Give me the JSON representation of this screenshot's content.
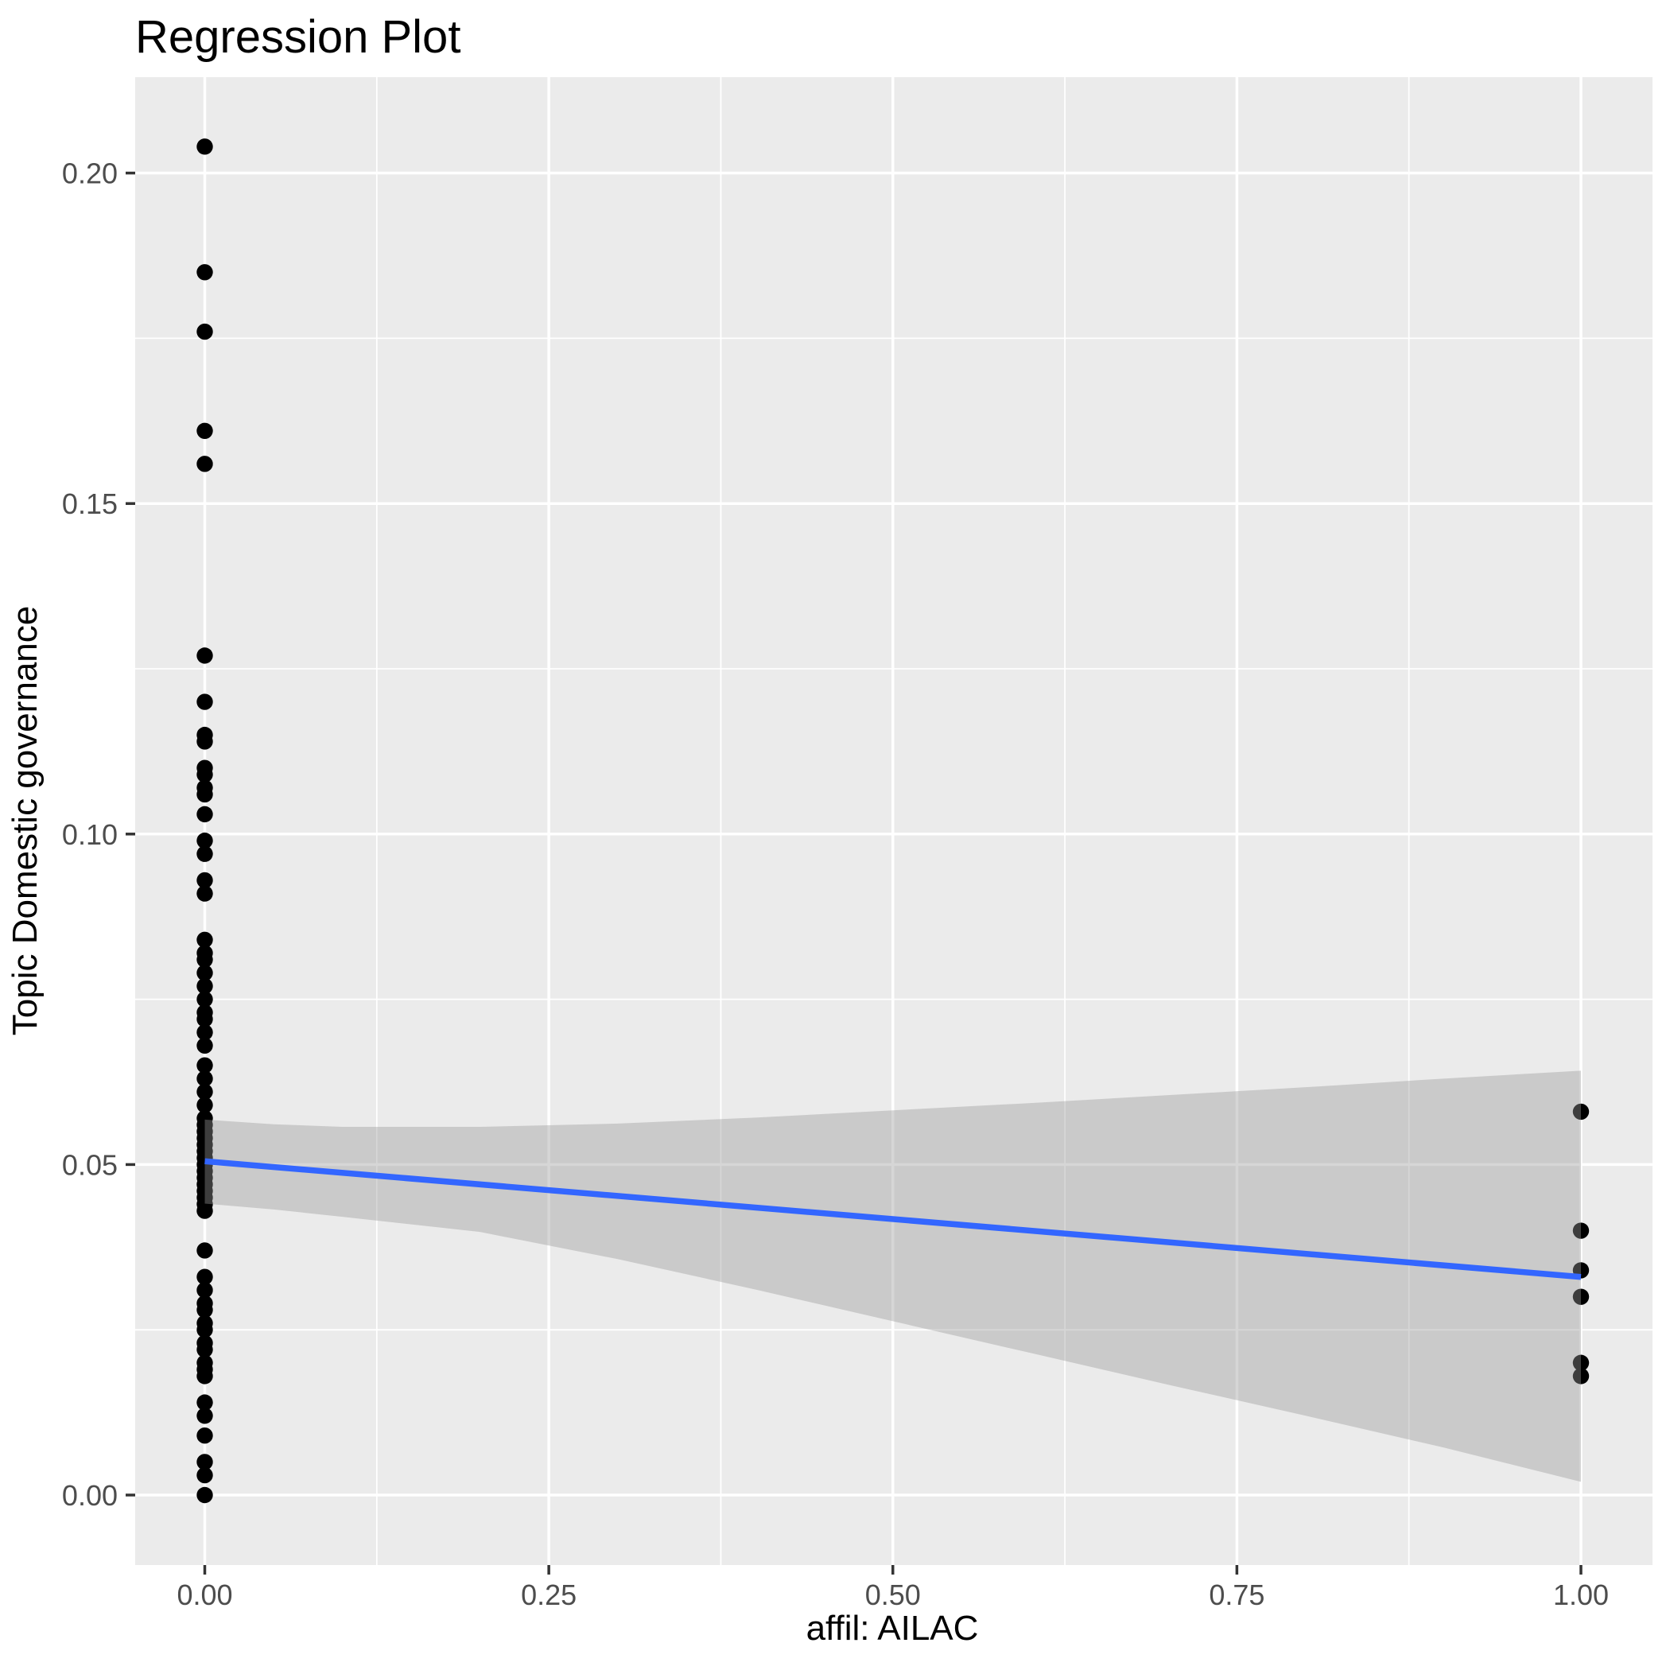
{
  "figure": {
    "title": "Regression Plot"
  },
  "chart_data": {
    "type": "scatter",
    "title": "Regression Plot",
    "xlabel": "affil: AILAC",
    "ylabel": "Topic Domestic governance",
    "legend": "none",
    "grid": true,
    "xlim": [
      -0.0505,
      1.0505
    ],
    "ylim": [
      -0.0106,
      0.2145
    ],
    "x_ticks": {
      "values": [
        0.0,
        0.25,
        0.5,
        0.75,
        1.0
      ],
      "labels": [
        "0.00",
        "0.25",
        "0.50",
        "0.75",
        "1.00"
      ]
    },
    "y_ticks": {
      "values": [
        0.0,
        0.05,
        0.1,
        0.15,
        0.2
      ],
      "labels": [
        "0.00",
        "0.05",
        "0.10",
        "0.15",
        "0.20"
      ]
    },
    "x_minor_ticks": [
      0.125,
      0.375,
      0.625,
      0.875
    ],
    "y_minor_ticks": [
      0.025,
      0.075,
      0.125,
      0.175
    ],
    "points": [
      [
        0,
        0.204
      ],
      [
        0,
        0.185
      ],
      [
        0,
        0.176
      ],
      [
        0,
        0.161
      ],
      [
        0,
        0.156
      ],
      [
        0,
        0.127
      ],
      [
        0,
        0.12
      ],
      [
        0,
        0.115
      ],
      [
        0,
        0.114
      ],
      [
        0,
        0.11
      ],
      [
        0,
        0.109
      ],
      [
        0,
        0.107
      ],
      [
        0,
        0.106
      ],
      [
        0,
        0.103
      ],
      [
        0,
        0.099
      ],
      [
        0,
        0.097
      ],
      [
        0,
        0.093
      ],
      [
        0,
        0.091
      ],
      [
        0,
        0.084
      ],
      [
        0,
        0.082
      ],
      [
        0,
        0.081
      ],
      [
        0,
        0.079
      ],
      [
        0,
        0.077
      ],
      [
        0,
        0.075
      ],
      [
        0,
        0.073
      ],
      [
        0,
        0.072
      ],
      [
        0,
        0.07
      ],
      [
        0,
        0.068
      ],
      [
        0,
        0.065
      ],
      [
        0,
        0.063
      ],
      [
        0,
        0.061
      ],
      [
        0,
        0.059
      ],
      [
        0,
        0.057
      ],
      [
        0,
        0.056
      ],
      [
        0,
        0.055
      ],
      [
        0,
        0.054
      ],
      [
        0,
        0.053
      ],
      [
        0,
        0.052
      ],
      [
        0,
        0.051
      ],
      [
        0,
        0.05
      ],
      [
        0,
        0.049
      ],
      [
        0,
        0.048
      ],
      [
        0,
        0.047
      ],
      [
        0,
        0.046
      ],
      [
        0,
        0.045
      ],
      [
        0,
        0.044
      ],
      [
        0,
        0.043
      ],
      [
        0,
        0.037
      ],
      [
        0,
        0.033
      ],
      [
        0,
        0.031
      ],
      [
        0,
        0.029
      ],
      [
        0,
        0.028
      ],
      [
        0,
        0.026
      ],
      [
        0,
        0.025
      ],
      [
        0,
        0.023
      ],
      [
        0,
        0.022
      ],
      [
        0,
        0.02
      ],
      [
        0,
        0.019
      ],
      [
        0,
        0.018
      ],
      [
        0,
        0.014
      ],
      [
        0,
        0.012
      ],
      [
        0,
        0.009
      ],
      [
        0,
        0.005
      ],
      [
        0,
        0.003
      ],
      [
        0,
        0.0
      ],
      [
        1,
        0.058
      ],
      [
        1,
        0.04
      ],
      [
        1,
        0.034
      ],
      [
        1,
        0.03
      ],
      [
        1,
        0.02
      ],
      [
        1,
        0.018
      ]
    ],
    "regression_line": {
      "x": [
        0,
        1
      ],
      "y": [
        0.0505,
        0.033
      ],
      "color": "#3366FF"
    },
    "confidence_band": {
      "x": [
        0.0,
        0.05,
        0.1,
        0.2,
        0.3,
        0.4,
        0.5,
        0.6,
        0.7,
        0.8,
        0.9,
        1.0
      ],
      "upper": [
        0.0568,
        0.0561,
        0.0557,
        0.0557,
        0.0562,
        0.0571,
        0.0582,
        0.0593,
        0.0605,
        0.0617,
        0.063,
        0.0642
      ],
      "lower": [
        0.0441,
        0.0432,
        0.0421,
        0.0398,
        0.0357,
        0.0311,
        0.0263,
        0.0215,
        0.0167,
        0.012,
        0.0072,
        0.002
      ],
      "fill": "#999999",
      "opacity": 0.4
    },
    "colors": {
      "panel_background": "#EBEBEB",
      "gridline": "#FFFFFF",
      "point": "#000000",
      "tick_label": "#4D4D4D",
      "tick_mark": "#333333",
      "title": "#000000"
    }
  }
}
